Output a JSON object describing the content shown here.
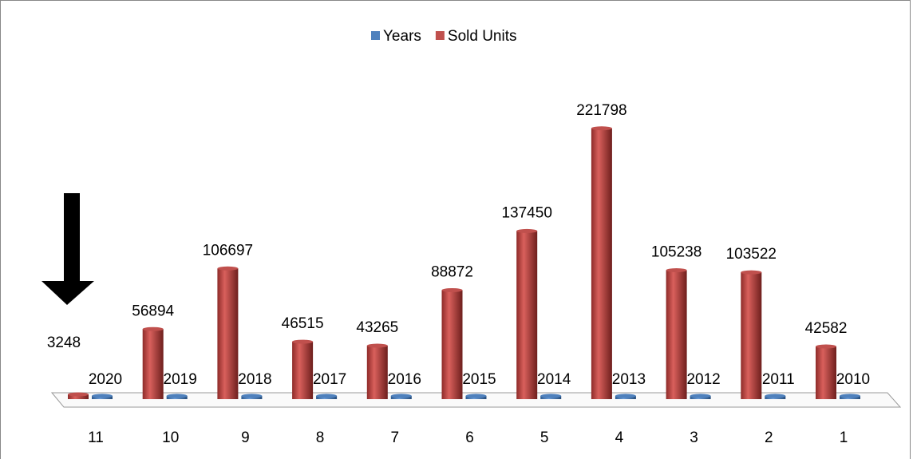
{
  "chart_data": {
    "type": "bar3d",
    "categories": [
      "11",
      "10",
      "9",
      "8",
      "7",
      "6",
      "5",
      "4",
      "3",
      "2",
      "1"
    ],
    "series": [
      {
        "name": "Years",
        "color": "#4f81bd",
        "values": [
          2020,
          2019,
          2018,
          2017,
          2016,
          2015,
          2014,
          2013,
          2012,
          2011,
          2010
        ]
      },
      {
        "name": "Sold Units",
        "color": "#c0504d",
        "values": [
          3248,
          56894,
          106697,
          46515,
          43265,
          88872,
          137450,
          221798,
          105238,
          103522,
          42582
        ]
      }
    ],
    "ylim": [
      0,
      240000
    ],
    "legend": "top"
  }
}
